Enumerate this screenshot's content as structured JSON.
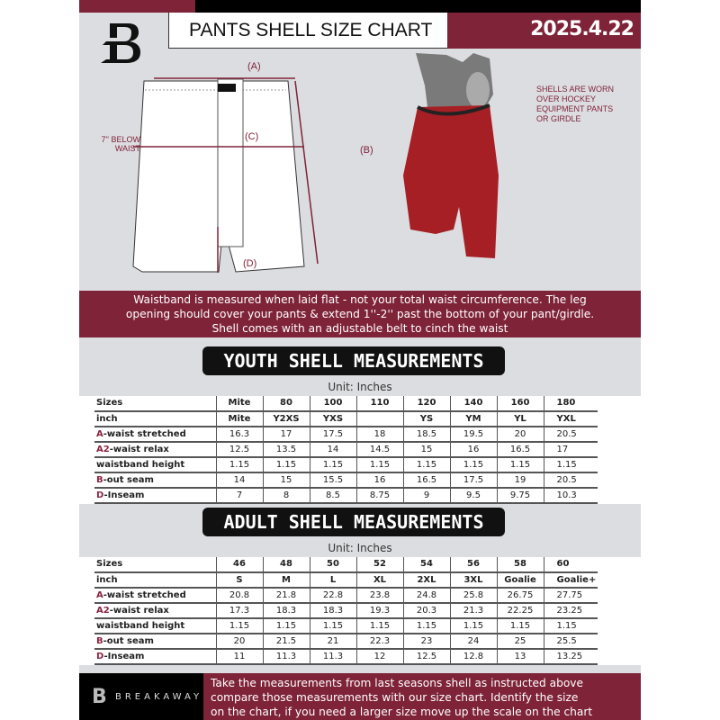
{
  "header": {
    "title": "PANTS SHELL SIZE CHART",
    "date": "2025.4.22",
    "logo_letter": "B"
  },
  "diagram": {
    "label_a": "(A)",
    "label_b": "(B)",
    "label_c": "(C)",
    "label_d": "(D)",
    "below_waist": [
      "7'' BELOW",
      "WAIST"
    ]
  },
  "photo_note": [
    "SHELLS ARE WORN",
    "OVER HOCKEY",
    "EQUIPMENT PANTS",
    "OR GIRDLE"
  ],
  "banner": [
    "Waistband is measured when laid flat - not your total waist circumference. The leg",
    "opening should cover your pants & extend 1''-2'' past the bottom of your pant/girdle.",
    "Shell comes with an adjustable belt to cinch the waist"
  ],
  "youth": {
    "title": "YOUTH SHELL MEASUREMENTS",
    "unit": "Unit: Inches",
    "rows": [
      {
        "mark": "",
        "label": "Sizes",
        "values": [
          "Mite",
          "80",
          "100",
          "110",
          "120",
          "140",
          "160",
          "180"
        ]
      },
      {
        "mark": "",
        "label": "inch",
        "values": [
          "Mite",
          "Y2XS",
          "YXS",
          "",
          "YS",
          "YM",
          "YL",
          "YXL"
        ]
      },
      {
        "mark": "A",
        "label": "-waist stretched",
        "values": [
          "16.3",
          "17",
          "17.5",
          "18",
          "18.5",
          "19.5",
          "20",
          "20.5"
        ]
      },
      {
        "mark": "A2",
        "label": "-waist relax",
        "values": [
          "12.5",
          "13.5",
          "14",
          "14.5",
          "15",
          "16",
          "16.5",
          "17"
        ]
      },
      {
        "mark": "",
        "label": "waistband height",
        "values": [
          "1.15",
          "1.15",
          "1.15",
          "1.15",
          "1.15",
          "1.15",
          "1.15",
          "1.15"
        ]
      },
      {
        "mark": "B",
        "label": "-out seam",
        "values": [
          "14",
          "15",
          "15.5",
          "16",
          "16.5",
          "17.5",
          "19",
          "20.5"
        ]
      },
      {
        "mark": "D",
        "label": "-Inseam",
        "values": [
          "7",
          "8",
          "8.5",
          "8.75",
          "9",
          "9.5",
          "9.75",
          "10.3"
        ]
      }
    ]
  },
  "adult": {
    "title": "ADULT SHELL MEASUREMENTS",
    "unit": "Unit: Inches",
    "rows": [
      {
        "mark": "",
        "label": "Sizes",
        "values": [
          "46",
          "48",
          "50",
          "52",
          "54",
          "56",
          "58",
          "60"
        ]
      },
      {
        "mark": "",
        "label": "inch",
        "values": [
          "S",
          "M",
          "L",
          "XL",
          "2XL",
          "3XL",
          "Goalie",
          "Goalie+"
        ]
      },
      {
        "mark": "A",
        "label": "-waist stretched",
        "values": [
          "20.8",
          "21.8",
          "22.8",
          "23.8",
          "24.8",
          "25.8",
          "26.75",
          "27.75"
        ]
      },
      {
        "mark": "A2",
        "label": "-waist relax",
        "values": [
          "17.3",
          "18.3",
          "18.3",
          "19.3",
          "20.3",
          "21.3",
          "22.25",
          "23.25"
        ]
      },
      {
        "mark": "",
        "label": "waistband height",
        "values": [
          "1.15",
          "1.15",
          "1.15",
          "1.15",
          "1.15",
          "1.15",
          "1.15",
          "1.15"
        ]
      },
      {
        "mark": "B",
        "label": "-out seam",
        "values": [
          "20",
          "21.5",
          "21",
          "22.3",
          "23",
          "24",
          "25",
          "25.5"
        ]
      },
      {
        "mark": "D",
        "label": "-Inseam",
        "values": [
          "11",
          "11.3",
          "11.3",
          "12",
          "12.5",
          "12.8",
          "13",
          "13.25"
        ]
      }
    ]
  },
  "footer": {
    "brand": "BREAKAWAY",
    "text": [
      "Take the measurements from last seasons shell as instructed above",
      "compare those measurements  with our size chart. Identify the size",
      "on the chart, if you need a larger size move up the scale on the chart"
    ]
  },
  "colors": {
    "maroon": "#7e2338",
    "black": "#000000",
    "background": "#dcdde1"
  }
}
